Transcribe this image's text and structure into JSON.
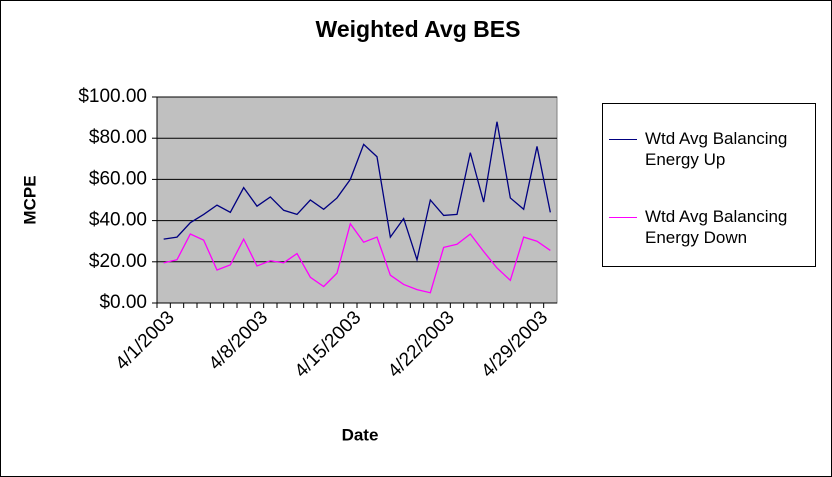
{
  "chart_data": {
    "type": "line",
    "title": "Weighted Avg BES",
    "x_label": "Date",
    "y_label": "MCPE",
    "categories": [
      "4/1/2003",
      null,
      null,
      null,
      null,
      null,
      null,
      "4/8/2003",
      null,
      null,
      null,
      null,
      null,
      null,
      "4/15/2003",
      null,
      null,
      null,
      null,
      null,
      null,
      "4/22/2003",
      null,
      null,
      null,
      null,
      null,
      null,
      "4/29/2003",
      null
    ],
    "series": [
      {
        "name": "Wtd Avg Balancing Energy Up",
        "color": "#000080",
        "values": [
          31,
          32,
          39,
          43,
          47.5,
          44,
          56,
          47,
          51.5,
          45,
          43,
          50,
          45.5,
          51,
          60,
          77,
          71,
          32,
          41,
          21,
          50,
          42.5,
          43,
          73,
          49,
          88,
          51,
          45.5,
          76,
          44
        ]
      },
      {
        "name": "Wtd Avg Balancing Energy Down",
        "color": "#ff00ff",
        "values": [
          19.5,
          21,
          33.5,
          30.5,
          16,
          18.5,
          31,
          18,
          20.5,
          19.5,
          24,
          12.5,
          8,
          14.5,
          38.5,
          29.5,
          32,
          13.5,
          9,
          6.5,
          5,
          27,
          28.5,
          33.5,
          25,
          17,
          11,
          32,
          30,
          25.5
        ]
      }
    ],
    "ylim": [
      0,
      100
    ],
    "yticks": [
      {
        "value": 0,
        "label": "$0.00"
      },
      {
        "value": 20,
        "label": "$20.00"
      },
      {
        "value": 40,
        "label": "$40.00"
      },
      {
        "value": 60,
        "label": "$60.00"
      },
      {
        "value": 80,
        "label": "$80.00"
      },
      {
        "value": 100,
        "label": "$100.00"
      }
    ],
    "grid": true,
    "legend": "right",
    "plot_background": "#c0c0c0"
  }
}
